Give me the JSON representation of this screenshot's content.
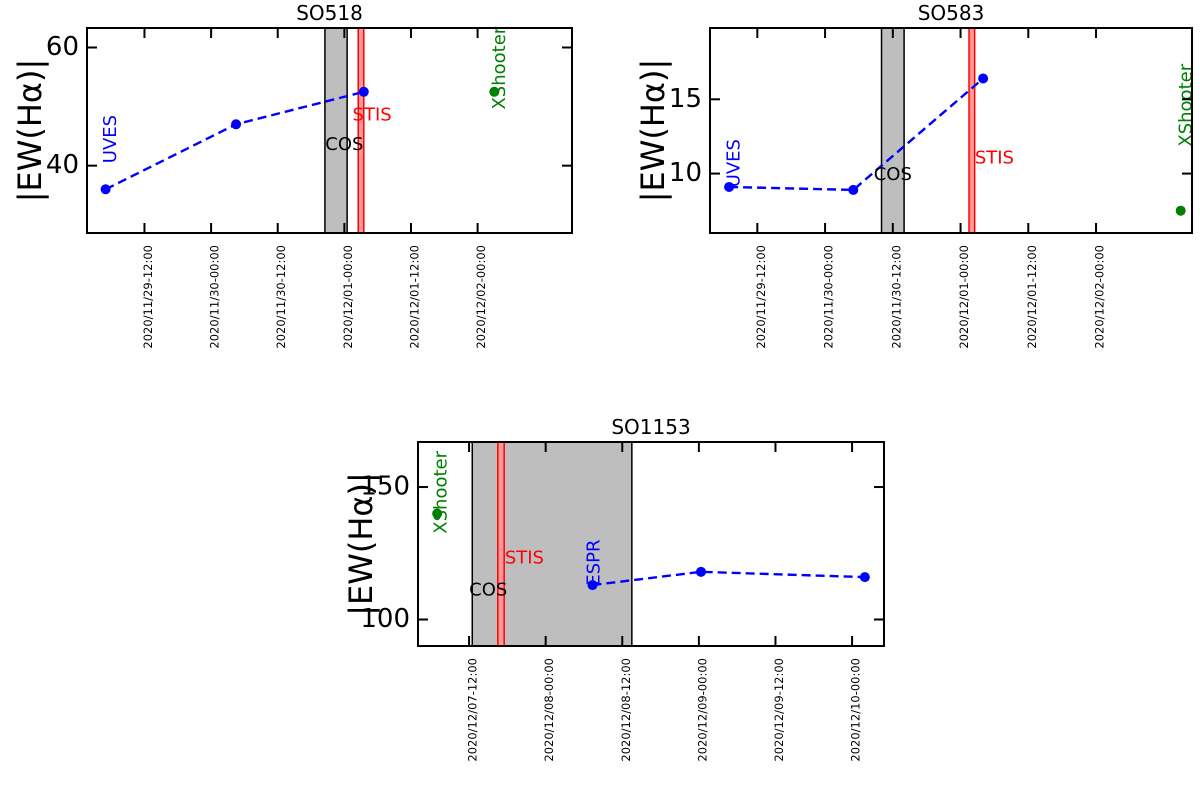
{
  "chart_data": [
    {
      "type": "line",
      "title": "SO518",
      "ylabel": "|EW(Hα)|",
      "xlabel": "",
      "y_ticks": [
        40,
        60
      ],
      "ylim": [
        28.6,
        63.3
      ],
      "xlim": [
        "2020-11-29 01:39",
        "2020-12-02 17:00"
      ],
      "x_ticks": [
        "2020/11/29-12:00",
        "2020/11/30-00:00",
        "2020/11/30-12:00",
        "2020/12/01-00:00",
        "2020/12/01-12:00",
        "2020/12/02-00:00"
      ],
      "series": [
        {
          "name": "UVES",
          "color": "#0000ff",
          "points": [
            {
              "x": "2020-11-29 05:00",
              "y": 36.0
            },
            {
              "x": "2020-11-30 04:30",
              "y": 47.0
            },
            {
              "x": "2020-12-01 03:30",
              "y": 52.5
            }
          ]
        },
        {
          "name": "XShooter",
          "color": "#008000",
          "points": [
            {
              "x": "2020-12-02 03:00",
              "y": 52.5
            }
          ]
        }
      ],
      "shaded_spans": [
        {
          "label": "COS",
          "from": "2020-11-30 20:30",
          "to": "2020-12-01 00:30",
          "fill": "#bebebe",
          "edge": "#000000"
        },
        {
          "label": "STIS",
          "from": "2020-12-01 02:30",
          "to": "2020-12-01 03:30",
          "fill": "#ff9999",
          "edge": "#ff0000"
        }
      ],
      "annotations": [
        {
          "text": "UVES",
          "x": "2020-11-29 06:00",
          "y": 44.5,
          "color": "#0000ff",
          "rotate": -90
        },
        {
          "text": "COS",
          "x": "2020-12-01 00:00",
          "y": 43.5,
          "color": "#000000",
          "rotate": 0
        },
        {
          "text": "STIS",
          "x": "2020-12-01 05:00",
          "y": 48.5,
          "color": "#ff0000",
          "rotate": 0
        },
        {
          "text": "XShooter",
          "x": "2020-12-02 04:00",
          "y": 56.5,
          "color": "#008000",
          "rotate": -90
        }
      ]
    },
    {
      "type": "line",
      "title": "SO583",
      "ylabel": "|EW(Hα)|",
      "xlabel": "",
      "y_ticks": [
        10,
        15
      ],
      "ylim": [
        6.0,
        19.8
      ],
      "xlim": [
        "2020-11-29 03:37",
        "2020-12-02 17:00"
      ],
      "x_ticks": [
        "2020/11/29-12:00",
        "2020/11/30-00:00",
        "2020/11/30-12:00",
        "2020/12/01-00:00",
        "2020/12/01-12:00",
        "2020/12/02-00:00"
      ],
      "series": [
        {
          "name": "UVES",
          "color": "#0000ff",
          "points": [
            {
              "x": "2020-11-29 07:00",
              "y": 9.1
            },
            {
              "x": "2020-11-30 05:00",
              "y": 8.9
            },
            {
              "x": "2020-12-01 04:00",
              "y": 16.4
            }
          ]
        },
        {
          "name": "XShooter",
          "color": "#008000",
          "points": [
            {
              "x": "2020-12-02 15:00",
              "y": 7.5
            }
          ]
        }
      ],
      "shaded_spans": [
        {
          "label": "COS",
          "from": "2020-11-30 10:00",
          "to": "2020-11-30 14:00",
          "fill": "#bebebe",
          "edge": "#000000"
        },
        {
          "label": "STIS",
          "from": "2020-12-01 01:30",
          "to": "2020-12-01 02:30",
          "fill": "#ff9999",
          "edge": "#ff0000"
        }
      ],
      "annotations": [
        {
          "text": "UVES",
          "x": "2020-11-29 08:00",
          "y": 10.7,
          "color": "#0000ff",
          "rotate": -90
        },
        {
          "text": "COS",
          "x": "2020-11-30 12:00",
          "y": 9.9,
          "color": "#000000",
          "rotate": 0
        },
        {
          "text": "STIS",
          "x": "2020-12-01 06:00",
          "y": 11.0,
          "color": "#ff0000",
          "rotate": 0
        },
        {
          "text": "XShooter",
          "x": "2020-12-02 16:00",
          "y": 14.6,
          "color": "#008000",
          "rotate": -90
        }
      ]
    },
    {
      "type": "line",
      "title": "SO1153",
      "ylabel": "|EW(Hα)|",
      "xlabel": "",
      "y_ticks": [
        100,
        150
      ],
      "ylim": [
        90,
        167
      ],
      "xlim": [
        "2020-12-07 04:00",
        "2020-12-10 05:00"
      ],
      "x_ticks": [
        "2020/12/07-12:00",
        "2020/12/08-00:00",
        "2020/12/08-12:00",
        "2020/12/09-00:00",
        "2020/12/09-12:00",
        "2020/12/10-00:00"
      ],
      "series": [
        {
          "name": "ESPR",
          "color": "#0000ff",
          "points": [
            {
              "x": "2020-12-08 07:20",
              "y": 113.0
            },
            {
              "x": "2020-12-09 00:20",
              "y": 118.0
            },
            {
              "x": "2020-12-10 02:00",
              "y": 116.0
            }
          ]
        },
        {
          "name": "XShooter",
          "color": "#008000",
          "points": [
            {
              "x": "2020-12-07 07:00",
              "y": 140.0
            }
          ]
        }
      ],
      "shaded_spans": [
        {
          "label": "COS",
          "from": "2020-12-07 12:30",
          "to": "2020-12-08 13:30",
          "fill": "#bebebe",
          "edge": "#000000"
        },
        {
          "label": "STIS",
          "from": "2020-12-07 16:30",
          "to": "2020-12-07 17:30",
          "fill": "#ff9999",
          "edge": "#ff0000"
        }
      ],
      "annotations": [
        {
          "text": "XShooter",
          "x": "2020-12-07 07:40",
          "y": 148.0,
          "color": "#008000",
          "rotate": -90
        },
        {
          "text": "STIS",
          "x": "2020-12-07 20:40",
          "y": 123.0,
          "color": "#ff0000",
          "rotate": 0
        },
        {
          "text": "COS",
          "x": "2020-12-07 15:00",
          "y": 111.0,
          "color": "#000000",
          "rotate": 0
        },
        {
          "text": "ESPR",
          "x": "2020-12-08 07:40",
          "y": 121.5,
          "color": "#0000ff",
          "rotate": -90
        }
      ]
    }
  ]
}
